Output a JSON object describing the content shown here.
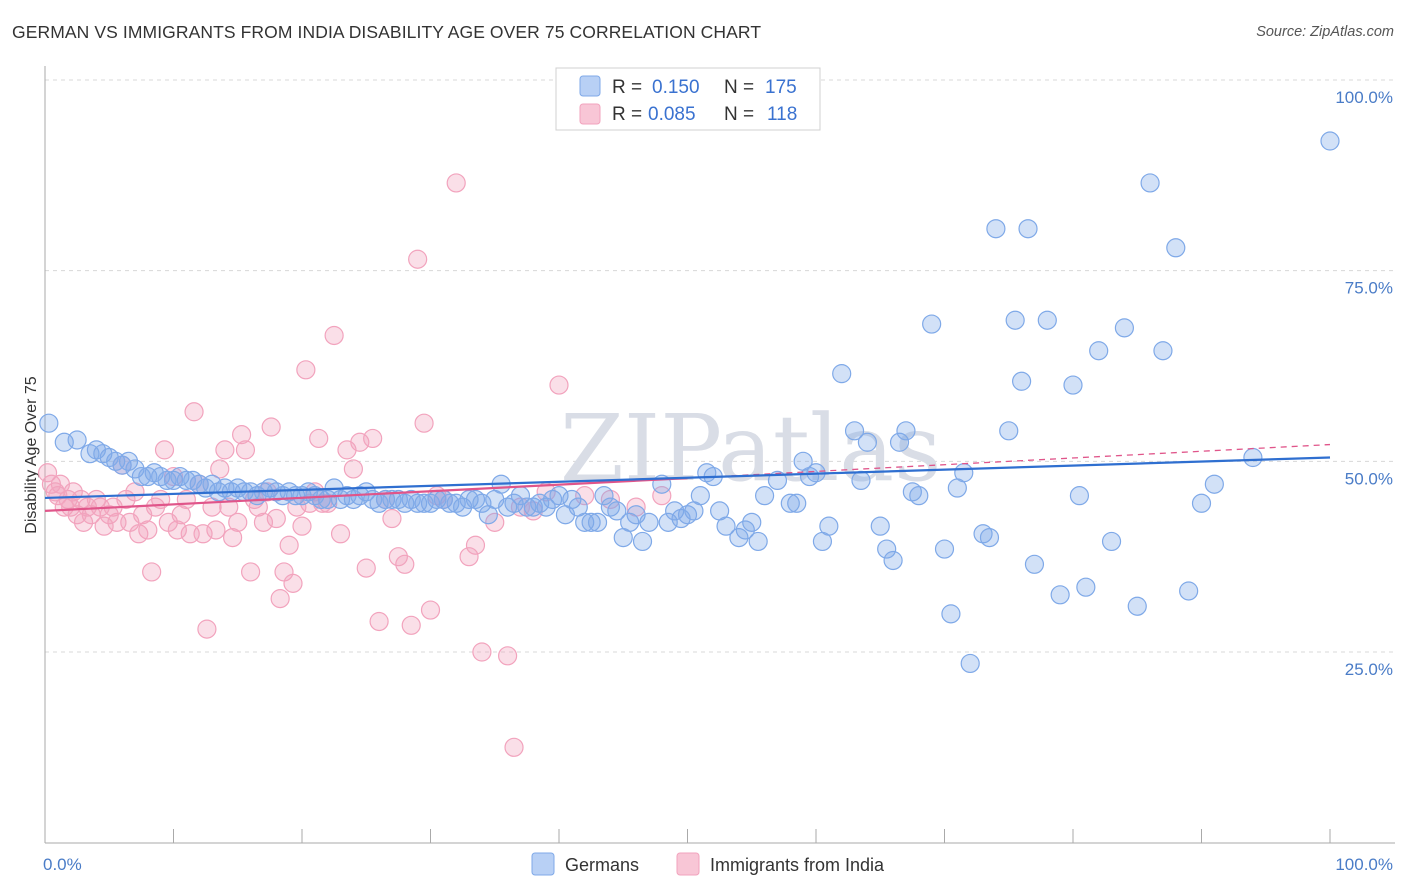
{
  "title": "GERMAN VS IMMIGRANTS FROM INDIA DISABILITY AGE OVER 75 CORRELATION CHART",
  "source": "Source: ZipAtlas.com",
  "watermark": "ZIPatlas",
  "colors": {
    "blue": "#7fa9e8",
    "blue_line": "#2f6fd0",
    "pink": "#f2a3bd",
    "pink_line": "#e0558a",
    "grid": "#d8d8d8",
    "tick_text": "#4a7cc7"
  },
  "legend": {
    "r_label": "R =",
    "n_label": "N =",
    "rows": [
      {
        "r": "0.150",
        "n": "175"
      },
      {
        "r": "0.085",
        "n": "118"
      }
    ]
  },
  "bottom_legend": [
    "Germans",
    "Immigrants from India"
  ],
  "chart_data": {
    "type": "scatter",
    "title": "GERMAN VS IMMIGRANTS FROM INDIA DISABILITY AGE OVER 75 CORRELATION CHART",
    "xlabel": "",
    "ylabel": "Disability Age Over 75",
    "xlim": [
      0,
      100
    ],
    "ylim": [
      0,
      105
    ],
    "x_tick_labels": [
      "0.0%",
      "100.0%"
    ],
    "y_tick_labels": [
      "25.0%",
      "50.0%",
      "75.0%",
      "100.0%"
    ],
    "y_ticks": [
      25,
      50,
      75,
      100
    ],
    "grid": true,
    "legend_position": "top-center",
    "series": [
      {
        "name": "Germans",
        "r": 0.15,
        "n": 175,
        "trend": {
          "x": [
            0,
            100
          ],
          "y": [
            45.2,
            50.5
          ]
        },
        "points": [
          [
            0.3,
            55
          ],
          [
            1.5,
            52.5
          ],
          [
            2.5,
            52.8
          ],
          [
            3.5,
            51
          ],
          [
            4,
            51.5
          ],
          [
            4.5,
            51
          ],
          [
            5,
            50.5
          ],
          [
            5.5,
            50
          ],
          [
            6,
            49.5
          ],
          [
            6.5,
            50
          ],
          [
            7,
            49
          ],
          [
            7.5,
            48
          ],
          [
            8,
            48
          ],
          [
            8.5,
            48.5
          ],
          [
            9,
            48
          ],
          [
            9.5,
            47.5
          ],
          [
            10,
            47.5
          ],
          [
            10.5,
            48
          ],
          [
            11,
            47.5
          ],
          [
            11.5,
            47.5
          ],
          [
            12,
            47
          ],
          [
            12.5,
            46.5
          ],
          [
            13,
            47
          ],
          [
            13.5,
            46
          ],
          [
            14,
            46.5
          ],
          [
            14.5,
            46
          ],
          [
            15,
            46.5
          ],
          [
            15.5,
            46
          ],
          [
            16,
            46
          ],
          [
            16.5,
            45.5
          ],
          [
            17,
            46
          ],
          [
            17.5,
            46.5
          ],
          [
            18,
            46
          ],
          [
            18.5,
            45.5
          ],
          [
            19,
            46
          ],
          [
            19.5,
            45.5
          ],
          [
            20,
            45.5
          ],
          [
            20.5,
            46
          ],
          [
            21,
            45.5
          ],
          [
            21.5,
            45
          ],
          [
            22,
            45
          ],
          [
            22.5,
            46.5
          ],
          [
            23,
            45
          ],
          [
            23.5,
            45.5
          ],
          [
            24,
            45
          ],
          [
            24.5,
            45.5
          ],
          [
            25,
            46
          ],
          [
            25.5,
            45
          ],
          [
            26,
            44.5
          ],
          [
            26.5,
            45
          ],
          [
            27,
            45
          ],
          [
            27.5,
            45
          ],
          [
            28,
            44.5
          ],
          [
            28.5,
            45
          ],
          [
            29,
            44.5
          ],
          [
            29.5,
            44.5
          ],
          [
            30,
            44.5
          ],
          [
            30.5,
            45
          ],
          [
            31,
            45
          ],
          [
            31.5,
            44.5
          ],
          [
            32,
            44.5
          ],
          [
            32.5,
            44
          ],
          [
            33,
            45
          ],
          [
            33.5,
            45
          ],
          [
            34,
            44.5
          ],
          [
            34.5,
            43
          ],
          [
            35,
            45
          ],
          [
            35.5,
            47
          ],
          [
            36,
            44
          ],
          [
            36.5,
            44.5
          ],
          [
            37,
            45.5
          ],
          [
            37.5,
            44
          ],
          [
            38,
            44
          ],
          [
            38.5,
            44.5
          ],
          [
            39,
            44
          ],
          [
            39.5,
            45
          ],
          [
            40,
            45.5
          ],
          [
            40.5,
            43
          ],
          [
            41,
            45
          ],
          [
            41.5,
            44
          ],
          [
            42,
            42
          ],
          [
            42.5,
            42
          ],
          [
            43,
            42
          ],
          [
            43.5,
            45.5
          ],
          [
            44,
            44
          ],
          [
            44.5,
            43.5
          ],
          [
            45,
            40
          ],
          [
            45.5,
            42
          ],
          [
            46,
            43
          ],
          [
            46.5,
            39.5
          ],
          [
            47,
            42
          ],
          [
            48,
            47
          ],
          [
            48.5,
            42
          ],
          [
            49,
            43.5
          ],
          [
            49.5,
            42.5
          ],
          [
            50,
            43
          ],
          [
            50.5,
            43.5
          ],
          [
            51,
            45.5
          ],
          [
            51.5,
            48.5
          ],
          [
            52,
            48
          ],
          [
            52.5,
            43.5
          ],
          [
            53,
            41.5
          ],
          [
            54,
            40
          ],
          [
            54.5,
            41
          ],
          [
            55,
            42
          ],
          [
            55.5,
            39.5
          ],
          [
            56,
            45.5
          ],
          [
            57,
            47.5
          ],
          [
            58,
            44.5
          ],
          [
            58.5,
            44.5
          ],
          [
            59,
            50
          ],
          [
            59.5,
            48
          ],
          [
            60,
            48.5
          ],
          [
            60.5,
            39.5
          ],
          [
            61,
            41.5
          ],
          [
            62,
            61.5
          ],
          [
            63,
            54
          ],
          [
            63.5,
            47.5
          ],
          [
            64,
            52.5
          ],
          [
            65,
            41.5
          ],
          [
            65.5,
            38.5
          ],
          [
            66,
            37
          ],
          [
            66.5,
            52.5
          ],
          [
            67,
            54
          ],
          [
            67.5,
            46
          ],
          [
            68,
            45.5
          ],
          [
            69,
            68
          ],
          [
            70,
            38.5
          ],
          [
            70.5,
            30
          ],
          [
            71,
            46.5
          ],
          [
            71.5,
            48.5
          ],
          [
            72,
            23.5
          ],
          [
            73,
            40.5
          ],
          [
            73.5,
            40
          ],
          [
            74,
            80.5
          ],
          [
            75,
            54
          ],
          [
            75.5,
            68.5
          ],
          [
            76,
            60.5
          ],
          [
            76.5,
            80.5
          ],
          [
            77,
            36.5
          ],
          [
            78,
            68.5
          ],
          [
            79,
            32.5
          ],
          [
            80,
            60
          ],
          [
            80.5,
            45.5
          ],
          [
            81,
            33.5
          ],
          [
            82,
            64.5
          ],
          [
            83,
            39.5
          ],
          [
            84,
            67.5
          ],
          [
            85,
            31
          ],
          [
            86,
            86.5
          ],
          [
            87,
            64.5
          ],
          [
            88,
            78
          ],
          [
            89,
            33
          ],
          [
            90,
            44.5
          ],
          [
            91,
            47
          ],
          [
            94,
            50.5
          ],
          [
            100,
            92
          ]
        ]
      },
      {
        "name": "Immigrants from India",
        "r": 0.085,
        "n": 118,
        "trend": {
          "x": [
            0,
            50
          ],
          "y": [
            43.5,
            47.8
          ]
        },
        "trend_extension": {
          "x": [
            50,
            100
          ],
          "y": [
            47.8,
            52.2
          ]
        },
        "points": [
          [
            0.2,
            48.5
          ],
          [
            0.5,
            47
          ],
          [
            0.8,
            46
          ],
          [
            1,
            45.5
          ],
          [
            1.2,
            47
          ],
          [
            1.5,
            44
          ],
          [
            1.8,
            45
          ],
          [
            2,
            44
          ],
          [
            2.2,
            46
          ],
          [
            2.5,
            43
          ],
          [
            2.8,
            45
          ],
          [
            3,
            42
          ],
          [
            3.3,
            44
          ],
          [
            3.6,
            43
          ],
          [
            4,
            45
          ],
          [
            4.3,
            44
          ],
          [
            4.6,
            41.5
          ],
          [
            5,
            43
          ],
          [
            5.3,
            44
          ],
          [
            5.6,
            42
          ],
          [
            6,
            49.5
          ],
          [
            6.3,
            45
          ],
          [
            6.6,
            42
          ],
          [
            7,
            46
          ],
          [
            7.3,
            40.5
          ],
          [
            7.6,
            43
          ],
          [
            8,
            41
          ],
          [
            8.3,
            35.5
          ],
          [
            8.6,
            44
          ],
          [
            9,
            45
          ],
          [
            9.3,
            51.5
          ],
          [
            9.6,
            42
          ],
          [
            10,
            48
          ],
          [
            10.3,
            41
          ],
          [
            10.6,
            43
          ],
          [
            11,
            45
          ],
          [
            11.3,
            40.5
          ],
          [
            11.6,
            56.5
          ],
          [
            12,
            47
          ],
          [
            12.3,
            40.5
          ],
          [
            12.6,
            28
          ],
          [
            13,
            44
          ],
          [
            13.3,
            41
          ],
          [
            13.6,
            49
          ],
          [
            14,
            51.5
          ],
          [
            14.3,
            44
          ],
          [
            14.6,
            40
          ],
          [
            15,
            42
          ],
          [
            15.3,
            53.5
          ],
          [
            15.6,
            51.5
          ],
          [
            16,
            35.5
          ],
          [
            16.3,
            45
          ],
          [
            16.6,
            44
          ],
          [
            17,
            42
          ],
          [
            17.3,
            46
          ],
          [
            17.6,
            54.5
          ],
          [
            18,
            42.5
          ],
          [
            18.3,
            32
          ],
          [
            18.6,
            35.5
          ],
          [
            19,
            39
          ],
          [
            19.3,
            34
          ],
          [
            19.6,
            44
          ],
          [
            20,
            41.5
          ],
          [
            20.3,
            62
          ],
          [
            20.6,
            44.5
          ],
          [
            21,
            46
          ],
          [
            21.3,
            53
          ],
          [
            21.6,
            44.5
          ],
          [
            22,
            44.5
          ],
          [
            22.5,
            66.5
          ],
          [
            23,
            40.5
          ],
          [
            23.5,
            51.5
          ],
          [
            24,
            49
          ],
          [
            24.5,
            52.5
          ],
          [
            25,
            36
          ],
          [
            25.5,
            53
          ],
          [
            26,
            29
          ],
          [
            26.5,
            45
          ],
          [
            27,
            42.5
          ],
          [
            27.5,
            37.5
          ],
          [
            28,
            36.5
          ],
          [
            28.5,
            28.5
          ],
          [
            29,
            76.5
          ],
          [
            29.5,
            55
          ],
          [
            30,
            30.5
          ],
          [
            30.5,
            45.5
          ],
          [
            31,
            45
          ],
          [
            32,
            86.5
          ],
          [
            33,
            37.5
          ],
          [
            33.5,
            39
          ],
          [
            34,
            25
          ],
          [
            35,
            42
          ],
          [
            36,
            24.5
          ],
          [
            36.5,
            12.5
          ],
          [
            37,
            44
          ],
          [
            38,
            43.5
          ],
          [
            39,
            46
          ],
          [
            40,
            60
          ],
          [
            42,
            45.5
          ],
          [
            44,
            45
          ],
          [
            46,
            44
          ],
          [
            48,
            45.5
          ]
        ]
      }
    ]
  }
}
